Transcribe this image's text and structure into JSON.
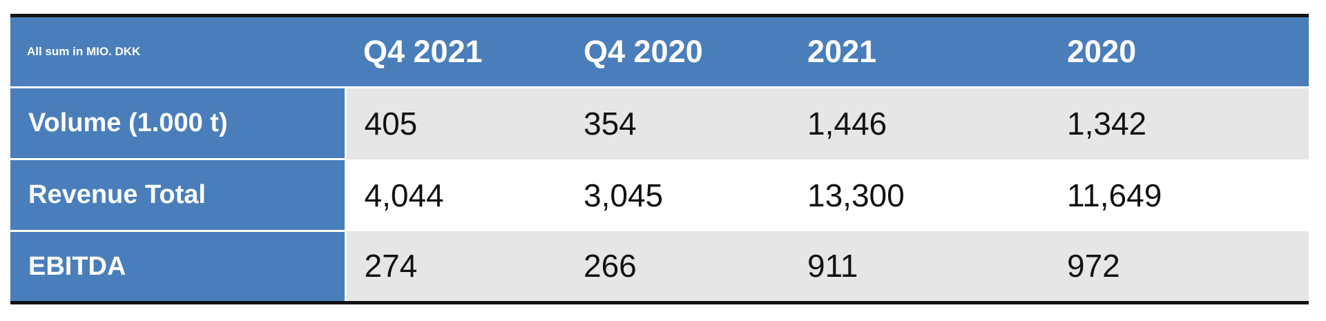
{
  "table": {
    "corner": "All sum in MIO. DKK",
    "columns": [
      "Q4 2021",
      "Q4 2020",
      "2021",
      "2020"
    ],
    "rows": [
      {
        "label": "Volume (1.000 t)",
        "cells": [
          "405",
          "354",
          "1,446",
          "1,342"
        ]
      },
      {
        "label": "Revenue Total",
        "cells": [
          "4,044",
          "3,045",
          "13,300",
          "11,649"
        ]
      },
      {
        "label": "EBITDA",
        "cells": [
          "274",
          "266",
          "911",
          "972"
        ]
      }
    ]
  }
}
